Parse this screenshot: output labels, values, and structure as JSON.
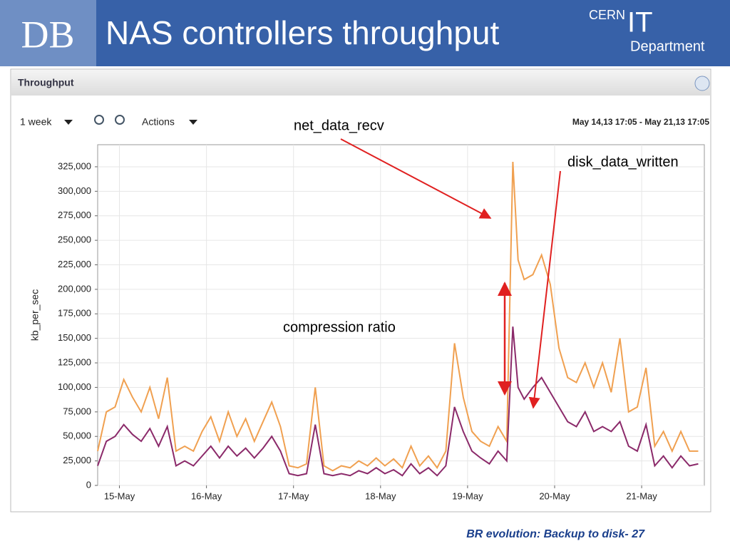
{
  "slide": {
    "logo": "DB",
    "title": "NAS controllers throughput",
    "org_top": "CERN",
    "org_big": "IT",
    "org_bottom": "Department",
    "footer": "BR evolution: Backup to disk- 27"
  },
  "panel": {
    "title": "Throughput",
    "period": "1 week",
    "actions": "Actions",
    "range": "May 14,13 17:05 - May 21,13 17:05"
  },
  "chart_data": {
    "type": "line",
    "y_label": "kb_per_sec",
    "annotations": [
      "net_data_recv",
      "disk_data_written",
      "compression ratio"
    ],
    "xlim": [
      14.75,
      21.72
    ],
    "xticks": [
      {
        "value": 15,
        "label": "15-May"
      },
      {
        "value": 16,
        "label": "16-May"
      },
      {
        "value": 17,
        "label": "17-May"
      },
      {
        "value": 18,
        "label": "18-May"
      },
      {
        "value": 19,
        "label": "19-May"
      },
      {
        "value": 20,
        "label": "20-May"
      },
      {
        "value": 21,
        "label": "21-May"
      }
    ],
    "ylim": [
      0,
      347500
    ],
    "yticks": [
      0,
      {
        "value": 25000,
        "label": "25,000"
      },
      {
        "value": 50000,
        "label": "50,000"
      },
      {
        "value": 75000,
        "label": "75,000"
      },
      {
        "value": 100000,
        "label": "100,000"
      },
      {
        "value": 125000,
        "label": "125,000"
      },
      {
        "value": 150000,
        "label": "150,000"
      },
      {
        "value": 175000,
        "label": "175,000"
      },
      {
        "value": 200000,
        "label": "200,000"
      },
      {
        "value": 225000,
        "label": "225,000"
      },
      {
        "value": 250000,
        "label": "250,000"
      },
      {
        "value": 275000,
        "label": "275,000"
      },
      {
        "value": 300000,
        "label": "300,000"
      },
      {
        "value": 325000,
        "label": "325,000"
      }
    ],
    "grid": true,
    "x": [
      14.75,
      14.85,
      14.95,
      15.05,
      15.15,
      15.25,
      15.35,
      15.45,
      15.55,
      15.65,
      15.75,
      15.85,
      15.95,
      16.05,
      16.15,
      16.25,
      16.35,
      16.45,
      16.55,
      16.65,
      16.75,
      16.85,
      16.95,
      17.05,
      17.15,
      17.25,
      17.35,
      17.45,
      17.55,
      17.65,
      17.75,
      17.85,
      17.95,
      18.05,
      18.15,
      18.25,
      18.35,
      18.45,
      18.55,
      18.65,
      18.75,
      18.85,
      18.95,
      19.05,
      19.15,
      19.25,
      19.35,
      19.45,
      19.52,
      19.58,
      19.65,
      19.75,
      19.85,
      19.95,
      20.05,
      20.15,
      20.25,
      20.35,
      20.45,
      20.55,
      20.65,
      20.75,
      20.85,
      20.95,
      21.05,
      21.15,
      21.25,
      21.35,
      21.45,
      21.55,
      21.65
    ],
    "series": [
      {
        "color": "#f0a050",
        "values": [
          35000,
          75000,
          80000,
          108000,
          90000,
          75000,
          100000,
          68000,
          110000,
          35000,
          40000,
          35000,
          55000,
          70000,
          45000,
          75000,
          50000,
          68000,
          45000,
          65000,
          85000,
          60000,
          20000,
          18000,
          22000,
          100000,
          20000,
          15000,
          20000,
          18000,
          25000,
          20000,
          28000,
          20000,
          27000,
          18000,
          40000,
          20000,
          30000,
          18000,
          35000,
          145000,
          90000,
          55000,
          45000,
          40000,
          60000,
          45000,
          330000,
          230000,
          210000,
          215000,
          235000,
          205000,
          140000,
          110000,
          105000,
          125000,
          100000,
          125000,
          95000,
          150000,
          75000,
          80000,
          120000,
          40000,
          55000,
          35000,
          55000,
          35000,
          35000
        ]
      },
      {
        "color": "#8b2a6a",
        "values": [
          20000,
          45000,
          50000,
          62000,
          52000,
          45000,
          58000,
          40000,
          60000,
          20000,
          25000,
          20000,
          30000,
          40000,
          28000,
          40000,
          30000,
          38000,
          28000,
          38000,
          50000,
          35000,
          12000,
          10000,
          12000,
          62000,
          12000,
          10000,
          12000,
          10000,
          15000,
          12000,
          18000,
          12000,
          16000,
          10000,
          22000,
          12000,
          18000,
          10000,
          20000,
          80000,
          55000,
          35000,
          28000,
          22000,
          35000,
          25000,
          162000,
          100000,
          88000,
          100000,
          110000,
          95000,
          80000,
          65000,
          60000,
          75000,
          55000,
          60000,
          55000,
          65000,
          40000,
          35000,
          62000,
          20000,
          30000,
          18000,
          30000,
          20000,
          22000
        ]
      }
    ]
  }
}
